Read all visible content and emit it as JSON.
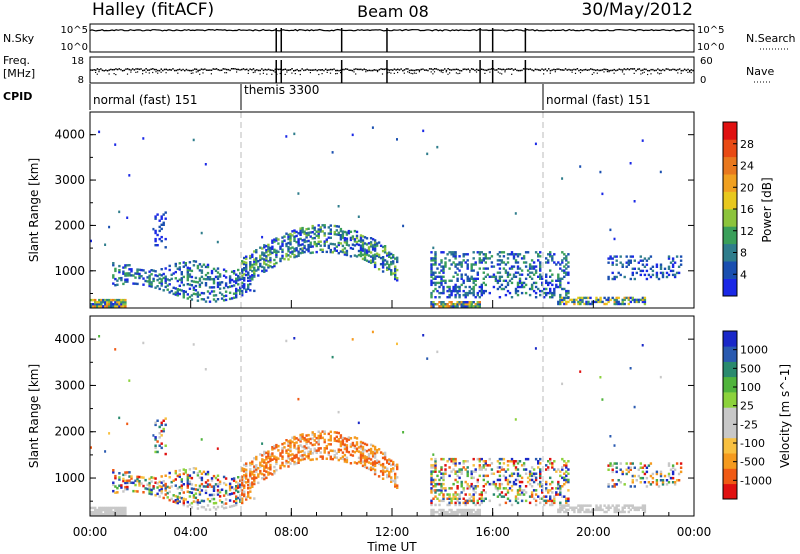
{
  "header": {
    "station": "Halley (fitACF)",
    "beam": "Beam 08",
    "date": "30/May/2012"
  },
  "left_labels": {
    "nsky": "N.Sky",
    "nsky_hi": "10^5",
    "nsky_lo": "10^0",
    "freq": "Freq.",
    "freq_unit": "[MHz]",
    "freq_hi": "18",
    "freq_lo": "8",
    "cpid": "CPID"
  },
  "right_labels": {
    "nsearch": "N.Search",
    "nsearch_hi": "10^5",
    "nsearch_lo": "10^0",
    "nave": "Nave",
    "nave_hi": "60",
    "nave_lo": "0"
  },
  "cpid_segments": [
    {
      "label": "normal (fast) 151",
      "start": 0,
      "end": 6
    },
    {
      "label": "themis 3300",
      "start": 6,
      "end": 18
    },
    {
      "label": "normal (fast) 151",
      "start": 18,
      "end": 24
    }
  ],
  "colors": {
    "power": [
      "#1a28e6",
      "#1a4fb0",
      "#2f7d8c",
      "#3a9f5a",
      "#8cc43c",
      "#e8c81e",
      "#f0a020",
      "#e8781e",
      "#e84a14",
      "#e01010"
    ],
    "velocity": [
      "#e01010",
      "#f05a14",
      "#f59a1e",
      "#f8c040",
      "#c8c8c8",
      "#c8c8c8",
      "#8cd23c",
      "#50b43c",
      "#2a8a6e",
      "#2a5ab0",
      "#1a28c8"
    ]
  },
  "chart_data": [
    {
      "type": "heatmap",
      "name": "power",
      "ylabel": "Slant Range [km]",
      "xlim": [
        0,
        24
      ],
      "ylim": [
        180,
        4500
      ],
      "yticks": [
        "1000",
        "2000",
        "3000",
        "4000"
      ],
      "colorbar_label": "Power [dB]",
      "colorbar_ticks": [
        "4",
        "8",
        "12",
        "16",
        "20",
        "24",
        "28"
      ],
      "clim": [
        0,
        30
      ]
    },
    {
      "type": "heatmap",
      "name": "velocity",
      "ylabel": "Slant Range [km]",
      "xlabel": "Time UT",
      "xlim": [
        0,
        24
      ],
      "ylim": [
        180,
        4500
      ],
      "xticks": [
        "00:00",
        "04:00",
        "08:00",
        "12:00",
        "16:00",
        "20:00",
        "00:00"
      ],
      "yticks": [
        "1000",
        "2000",
        "3000",
        "4000"
      ],
      "colorbar_label": "Velocity [m s^-1]",
      "colorbar_ticks": [
        "1000",
        "500",
        "100",
        "25",
        "-25",
        "-100",
        "-500",
        "-1000"
      ]
    },
    {
      "type": "line",
      "name": "nsky-nsearch",
      "ylim_log": [
        0,
        5
      ],
      "gap_times": [
        7.4,
        7.6,
        10.0,
        11.8,
        15.5,
        16.0,
        17.3
      ]
    },
    {
      "type": "scatter",
      "name": "freq-nave",
      "freq_ylim": [
        8,
        18
      ],
      "nave_ylim": [
        0,
        60
      ],
      "gap_times": [
        7.4,
        7.6,
        10.0,
        11.8,
        15.5,
        16.0,
        17.3
      ]
    }
  ]
}
